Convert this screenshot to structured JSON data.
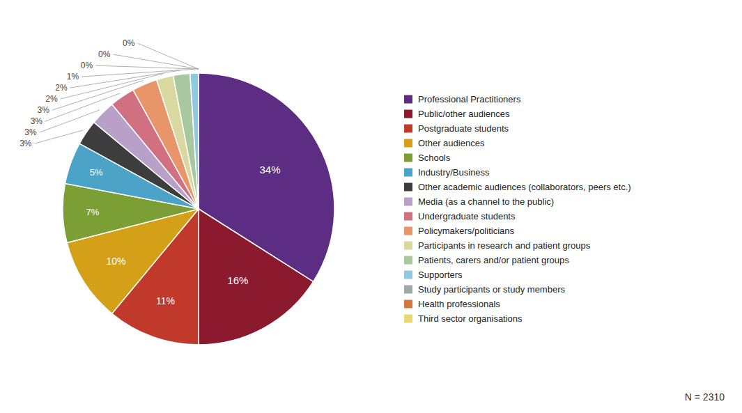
{
  "chart_data": {
    "type": "pie",
    "categories": [
      "Professional Practitioners",
      "Public/other audiences",
      "Postgraduate students",
      "Other audiences",
      "Schools",
      "Industry/Business",
      "Other academic audiences (collaborators, peers etc.)",
      "Media (as a channel to the public)",
      "Undergraduate students",
      "Policymakers/politicians",
      "Participants in research and patient groups",
      "Patients, carers and/or patient groups",
      "Supporters",
      "Study participants or study members",
      "Health professionals",
      "Third sector organisations"
    ],
    "values": [
      34,
      16,
      11,
      10,
      7,
      5,
      3,
      3,
      3,
      3,
      2,
      2,
      1,
      0,
      0,
      0
    ],
    "value_labels": [
      "34%",
      "16%",
      "11%",
      "10%",
      "7%",
      "5%",
      "3%",
      "3%",
      "3%",
      "3%",
      "2%",
      "2%",
      "1%",
      "0%",
      "0%",
      "0%"
    ],
    "colors": [
      "#5C2D82",
      "#8B1A2E",
      "#C0392B",
      "#D4A017",
      "#7B9E35",
      "#4BA3C7",
      "#3D3D3D",
      "#B8A0C8",
      "#D07080",
      "#E8956A",
      "#D8D8A0",
      "#A8C8A0",
      "#90C8E0",
      "#A0A8A8",
      "#D47840",
      "#E8D870"
    ],
    "data_labels": true,
    "legend": "right",
    "annotations": [
      "N = 2310"
    ]
  }
}
